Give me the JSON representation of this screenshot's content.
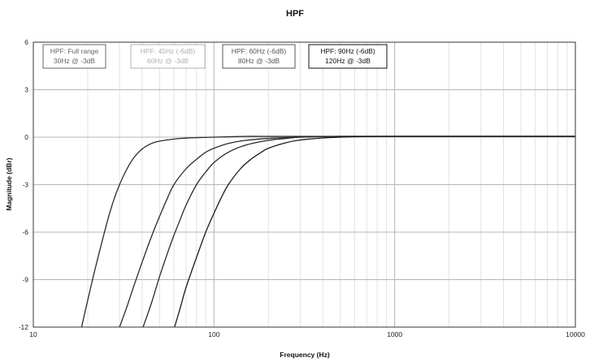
{
  "chart_data": {
    "type": "line",
    "title": "HPF",
    "xlabel": "Frequency (Hz)",
    "ylabel": "Magnitude (dBr)",
    "xscale": "log",
    "xlim": [
      10,
      10000
    ],
    "ylim": [
      -12,
      6
    ],
    "xticks": [
      10,
      100,
      1000,
      10000
    ],
    "xtick_labels": [
      "10",
      "100",
      "1000",
      "10000"
    ],
    "yticks": [
      6,
      3,
      0,
      -3,
      -6,
      -9,
      -12
    ],
    "ytick_labels": [
      "6",
      "3",
      "0",
      "-3",
      "-6",
      "-9",
      "-12"
    ],
    "grid": true,
    "legend_placement": "top, inside plot area",
    "series": [
      {
        "label_line1": "HPF: Full range",
        "label_line2": "30Hz @ -3dB",
        "color": "#2a2a2a",
        "legend_color": "#666666",
        "x": [
          18.5,
          20,
          22,
          24,
          26,
          28,
          30,
          33,
          36,
          40,
          45,
          50,
          60,
          70,
          80,
          100,
          150,
          200,
          300,
          500,
          1000,
          3000,
          10000
        ],
        "y": [
          -12,
          -10.3,
          -8.3,
          -6.6,
          -5.1,
          -3.9,
          -3.0,
          -2.0,
          -1.3,
          -0.75,
          -0.4,
          -0.25,
          -0.12,
          -0.06,
          -0.03,
          0,
          0.05,
          0.05,
          0.05,
          0.05,
          0.05,
          0.05,
          0.05
        ]
      },
      {
        "label_line1": "HPF: 45Hz (-6dB)",
        "label_line2": "60Hz @ -3dB",
        "color": "#2a2a2a",
        "legend_color": "#b0b0b0",
        "x": [
          30,
          33,
          36,
          40,
          45,
          50,
          55,
          60,
          70,
          80,
          90,
          100,
          120,
          150,
          200,
          300,
          500,
          1000,
          3000,
          10000
        ],
        "y": [
          -12,
          -10.7,
          -9.4,
          -7.9,
          -6.3,
          -5.0,
          -3.9,
          -3.0,
          -2.0,
          -1.4,
          -0.95,
          -0.7,
          -0.4,
          -0.2,
          -0.08,
          0,
          0.05,
          0.05,
          0.05,
          0.05
        ]
      },
      {
        "label_line1": "HPF: 60Hz (-6dB)",
        "label_line2": "80Hz @ -3dB",
        "color": "#2a2a2a",
        "legend_color": "#555555",
        "x": [
          40.5,
          45,
          50,
          55,
          60,
          65,
          70,
          80,
          90,
          100,
          120,
          150,
          200,
          250,
          300,
          400,
          500,
          1000,
          3000,
          10000
        ],
        "y": [
          -12,
          -10.5,
          -8.8,
          -7.4,
          -6.2,
          -5.2,
          -4.3,
          -3.0,
          -2.2,
          -1.6,
          -0.95,
          -0.5,
          -0.2,
          -0.08,
          0,
          0.04,
          0.05,
          0.05,
          0.05,
          0.05
        ]
      },
      {
        "label_line1": "HPF: 90Hz (-6dB)",
        "label_line2": "120Hz @ -3dB",
        "color": "#1a1a1a",
        "legend_color": "#111111",
        "x": [
          60.5,
          65,
          70,
          80,
          90,
          100,
          110,
          120,
          140,
          160,
          180,
          200,
          250,
          300,
          400,
          500,
          700,
          1000,
          3000,
          10000
        ],
        "y": [
          -12,
          -10.8,
          -9.5,
          -7.6,
          -6.0,
          -4.8,
          -3.8,
          -3.0,
          -2.0,
          -1.4,
          -1.0,
          -0.7,
          -0.35,
          -0.18,
          -0.05,
          0,
          0.04,
          0.05,
          0.05,
          0.05
        ]
      }
    ]
  }
}
